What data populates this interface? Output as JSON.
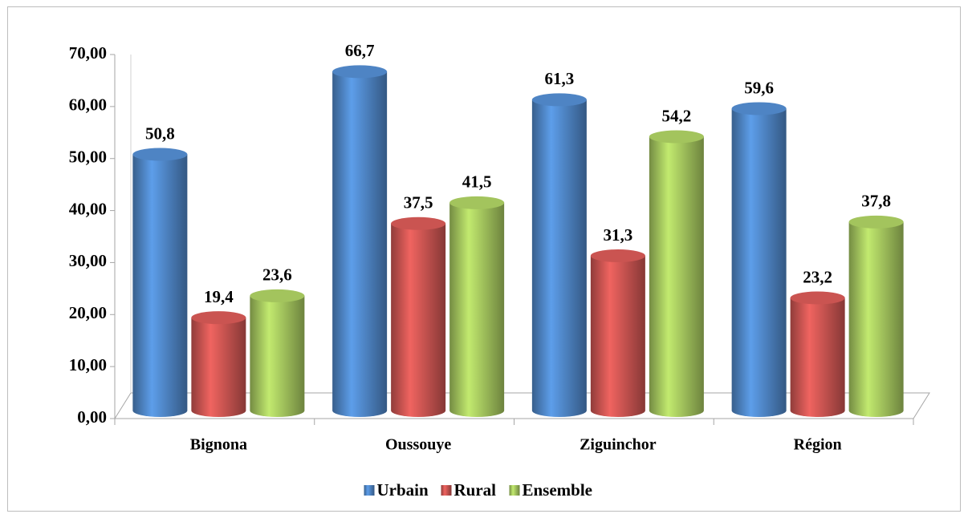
{
  "chart_data": {
    "type": "bar",
    "categories": [
      "Bignona",
      "Oussouye",
      "Ziguinchor",
      "Région"
    ],
    "series": [
      {
        "name": "Urbain",
        "color": "#4a7ebb",
        "values": [
          50.8,
          66.7,
          61.3,
          59.6
        ],
        "value_labels": [
          "50,8",
          "66,7",
          "61,3",
          "59,6"
        ]
      },
      {
        "name": "Rural",
        "color": "#c0504d",
        "values": [
          19.4,
          37.5,
          31.3,
          23.2
        ],
        "value_labels": [
          "19,4",
          "37,5",
          "31,3",
          "23,2"
        ]
      },
      {
        "name": "Ensemble",
        "color": "#9bbb59",
        "values": [
          23.6,
          41.5,
          54.2,
          37.8
        ],
        "value_labels": [
          "23,6",
          "41,5",
          "54,2",
          "37,8"
        ]
      }
    ],
    "ylim": [
      0,
      70
    ],
    "yticks": [
      {
        "value": 0,
        "label": "0,00"
      },
      {
        "value": 10,
        "label": "10,00"
      },
      {
        "value": 20,
        "label": "20,00"
      },
      {
        "value": 30,
        "label": "30,00"
      },
      {
        "value": 40,
        "label": "40,00"
      },
      {
        "value": 50,
        "label": "50,00"
      },
      {
        "value": 60,
        "label": "60,00"
      },
      {
        "value": 70,
        "label": "70,00"
      }
    ],
    "legend": "bottom"
  }
}
